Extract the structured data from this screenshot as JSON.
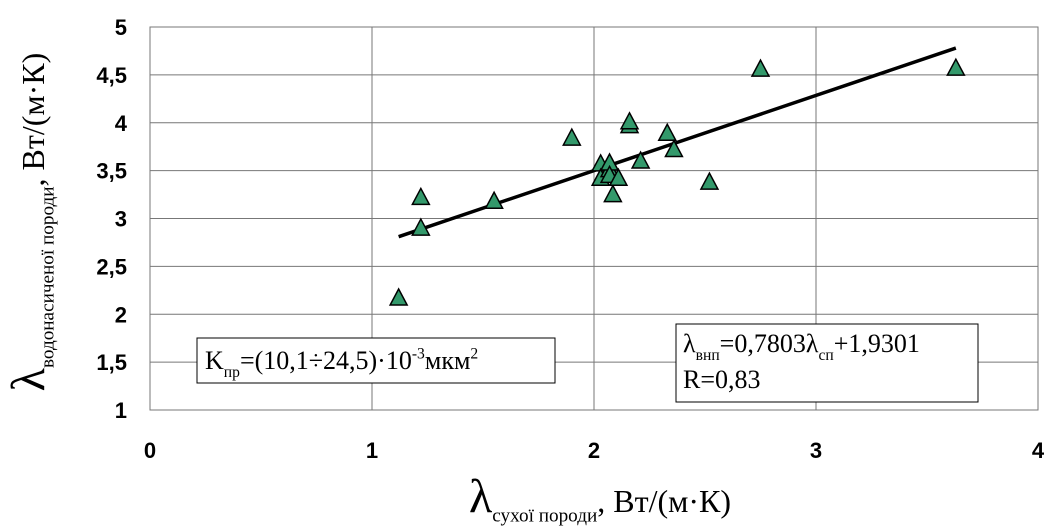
{
  "chart_data": {
    "type": "scatter",
    "x_label": [
      {
        "t": "λ",
        "s": "big"
      },
      {
        "t": "сухої породи",
        "s": "sub"
      },
      {
        "t": ", Вт/(м·К)"
      }
    ],
    "y_label": [
      {
        "t": "λ",
        "s": "big"
      },
      {
        "t": "водонасиченої породи",
        "s": "sub"
      },
      {
        "t": ", Вт/(м·К)"
      }
    ],
    "points": {
      "color": "#33996b",
      "x": [
        1.12,
        1.22,
        1.22,
        1.55,
        1.9,
        2.03,
        2.03,
        2.07,
        2.07,
        2.07,
        2.085,
        2.11,
        2.16,
        2.16,
        2.21,
        2.33,
        2.36,
        2.52,
        2.75,
        3.63
      ],
      "values": [
        2.17,
        3.22,
        2.9,
        3.18,
        3.84,
        3.57,
        3.42,
        3.51,
        3.58,
        3.45,
        3.25,
        3.42,
        3.97,
        4.01,
        3.6,
        3.89,
        3.72,
        3.38,
        4.56,
        4.57
      ]
    },
    "trendline": {
      "color": "#000000",
      "x": [
        1.12,
        3.63
      ],
      "values": [
        2.81,
        4.78
      ]
    },
    "annotations": [
      {
        "lines": [
          [
            {
              "t": "K"
            },
            {
              "t": "пр",
              "s": "sub"
            },
            {
              "t": "=(10,1÷24,5)·10"
            },
            {
              "t": "-3",
              "s": "sup"
            },
            {
              "t": "мкм"
            },
            {
              "t": "2",
              "s": "sup"
            }
          ]
        ]
      },
      {
        "lines": [
          [
            {
              "t": "λ"
            },
            {
              "t": "внп",
              "s": "sub"
            },
            {
              "t": "=0,7803λ"
            },
            {
              "t": "сп",
              "s": "sub"
            },
            {
              "t": "+1,9301"
            }
          ],
          [
            {
              "t": " R=0,83"
            }
          ]
        ]
      }
    ],
    "xlim": [
      0,
      4
    ],
    "xticks": [
      0,
      1,
      2,
      3,
      4
    ],
    "ylim": [
      1,
      5
    ],
    "yticks": [
      1,
      {
        "value": 1.5,
        "label": "1,5"
      },
      2,
      {
        "value": 2.5,
        "label": "2,5"
      },
      3,
      {
        "value": 3.5,
        "label": "3,5"
      },
      4,
      {
        "value": 4.5,
        "label": "4,5"
      },
      5
    ],
    "grid": true
  }
}
